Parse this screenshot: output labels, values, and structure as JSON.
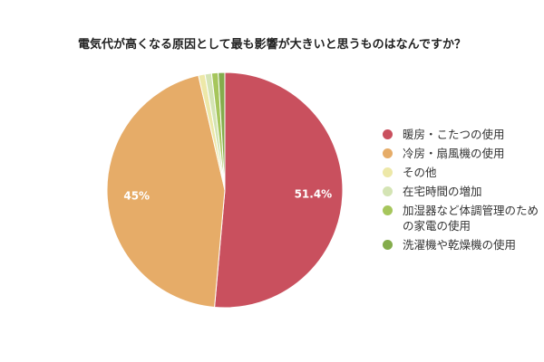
{
  "chart_data": {
    "type": "pie",
    "title": "電気代が高くなる原因として最も影響が大きいと思うものはなんですか？",
    "categories": [
      "暖房・こたつの使用",
      "冷房・扇風機の使用",
      "その他",
      "在宅時間の増加",
      "加湿器など体調管理のための家電の使用",
      "洗濯機や乾燥機の使用"
    ],
    "values": [
      51.4,
      45,
      0.9,
      0.9,
      0.9,
      0.9
    ],
    "data_labels": [
      "51.4%",
      "45%",
      null,
      null,
      null,
      null
    ],
    "colors": [
      "#c9505e",
      "#e6ac68",
      "#ede8a8",
      "#d4e4b4",
      "#a6c65c",
      "#84ac4c"
    ],
    "legend_position": "right"
  }
}
